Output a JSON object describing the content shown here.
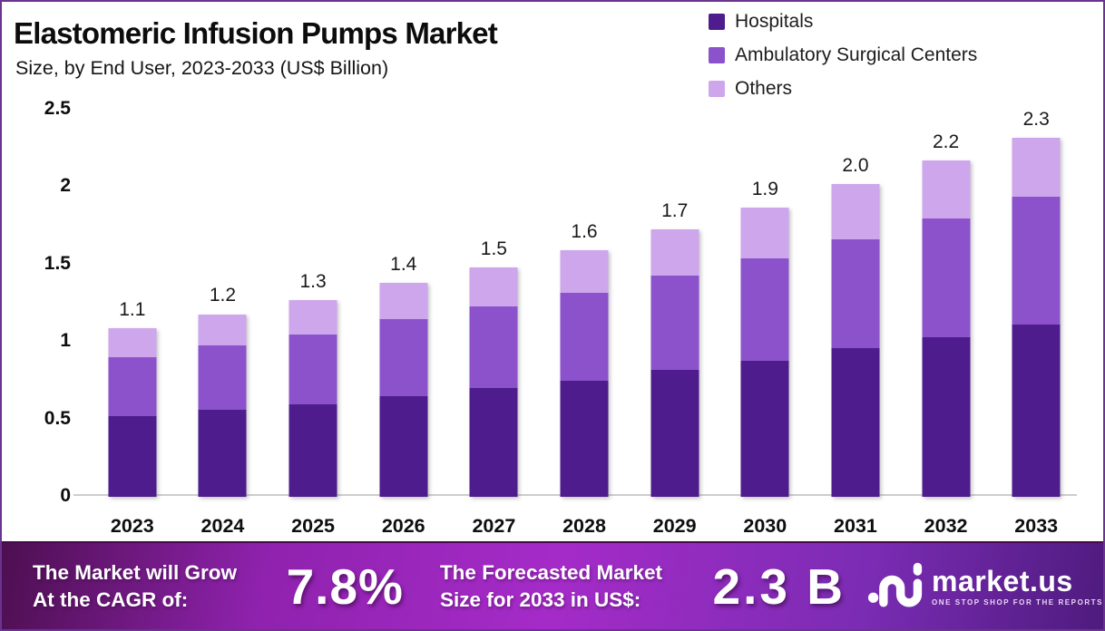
{
  "title": "Elastomeric Infusion Pumps Market",
  "subtitle": "Size, by End User, 2023-2033 (US$ Billion)",
  "legend": [
    {
      "label": "Hospitals",
      "color": "#4e1c8c"
    },
    {
      "label": "Ambulatory Surgical Centers",
      "color": "#8c52cc"
    },
    {
      "label": "Others",
      "color": "#cea6ec"
    }
  ],
  "chart_data": {
    "type": "bar",
    "stacked": true,
    "title": "Elastomeric Infusion Pumps Market Size, by End User, 2023-2033 (US$ Billion)",
    "categories": [
      "2023",
      "2024",
      "2025",
      "2026",
      "2027",
      "2028",
      "2029",
      "2030",
      "2031",
      "2032",
      "2033"
    ],
    "series": [
      {
        "name": "Hospitals",
        "color": "#4e1c8c",
        "values": [
          0.52,
          0.56,
          0.6,
          0.65,
          0.7,
          0.75,
          0.82,
          0.88,
          0.96,
          1.03,
          1.11
        ]
      },
      {
        "name": "Ambulatory Surgical Centers",
        "color": "#8c52cc",
        "values": [
          0.38,
          0.42,
          0.45,
          0.5,
          0.53,
          0.57,
          0.61,
          0.66,
          0.7,
          0.77,
          0.83
        ]
      },
      {
        "name": "Others",
        "color": "#cea6ec",
        "values": [
          0.19,
          0.2,
          0.22,
          0.23,
          0.25,
          0.27,
          0.3,
          0.33,
          0.36,
          0.37,
          0.38
        ]
      }
    ],
    "total_labels": [
      "1.1",
      "1.2",
      "1.3",
      "1.4",
      "1.5",
      "1.6",
      "1.7",
      "1.9",
      "2.0",
      "2.2",
      "2.3"
    ],
    "ytick_labels": [
      "0",
      "0.5",
      "1",
      "1.5",
      "2",
      "2.5"
    ],
    "ylim": [
      0,
      2.5
    ],
    "xlabel": "",
    "ylabel": "US$ Billion",
    "grid": false,
    "legend_position": "top-right"
  },
  "banner": {
    "growth_line1": "The Market will Grow",
    "growth_line2": "At the CAGR of:",
    "cagr_value": "7.8%",
    "forecast_line1": "The Forecasted Market",
    "forecast_line2": "Size for 2033 in US$:",
    "forecast_value": "2.3 B",
    "logo": {
      "name": "market.us",
      "tagline": "ONE STOP SHOP FOR THE REPORTS"
    }
  },
  "colors": {
    "border": "#6a3390",
    "axis_line": "#cdcdcd",
    "banner_gradient": [
      "#4d0f50",
      "#a52bc8",
      "#4e1b7e"
    ]
  }
}
